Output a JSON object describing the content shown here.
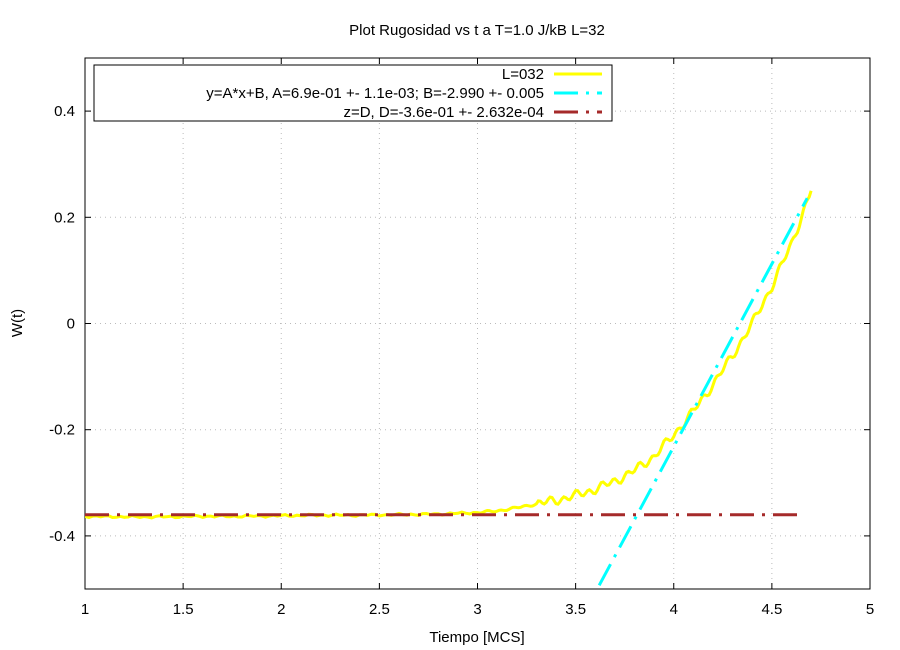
{
  "chart_data": {
    "type": "line",
    "title": "Plot Rugosidad vs t a T=1.0 J/kB L=32",
    "xlabel": "Tiempo [MCS]",
    "ylabel": "W(t)",
    "xlim": [
      1,
      5
    ],
    "ylim": [
      -0.5,
      0.5
    ],
    "xticks": [
      1,
      1.5,
      2,
      2.5,
      3,
      3.5,
      4,
      4.5,
      5
    ],
    "xtick_labels": [
      "1",
      "1.5",
      "2",
      "2.5",
      "3",
      "3.5",
      "4",
      "4.5",
      "5"
    ],
    "yticks": [
      -0.4,
      -0.2,
      0,
      0.2,
      0.4
    ],
    "ytick_labels": [
      "-0.4",
      "-0.2",
      "0",
      "0.2",
      "0.4"
    ],
    "grid": true,
    "legend_position": "top-left",
    "series": [
      {
        "name": "L=032",
        "style": "solid",
        "color": "#ffff00",
        "x": [
          1.0,
          1.2,
          1.4,
          1.6,
          1.8,
          2.0,
          2.2,
          2.4,
          2.6,
          2.8,
          3.0,
          3.1,
          3.2,
          3.3,
          3.4,
          3.5,
          3.6,
          3.7,
          3.8,
          3.9,
          4.0,
          4.1,
          4.2,
          4.3,
          4.4,
          4.5,
          4.6,
          4.7
        ],
        "y": [
          -0.363,
          -0.364,
          -0.364,
          -0.363,
          -0.363,
          -0.362,
          -0.361,
          -0.361,
          -0.36,
          -0.359,
          -0.356,
          -0.353,
          -0.347,
          -0.34,
          -0.333,
          -0.324,
          -0.312,
          -0.297,
          -0.277,
          -0.25,
          -0.21,
          -0.165,
          -0.115,
          -0.06,
          0.0,
          0.07,
          0.15,
          0.25
        ]
      },
      {
        "name": "y=A*x+B, A=6.9e-01 +- 1.1e-03; B=-2.990 +- 0.005",
        "style": "dash-dot",
        "color": "#00ffff",
        "x": [
          3.62,
          4.68
        ],
        "y": [
          -0.493,
          0.236
        ]
      },
      {
        "name": "z=D, D=-3.6e-01 +- 2.632e-04",
        "style": "dash-dot",
        "color": "#a52a2a",
        "x": [
          1.0,
          4.65
        ],
        "y": [
          -0.36,
          -0.36
        ]
      }
    ]
  }
}
